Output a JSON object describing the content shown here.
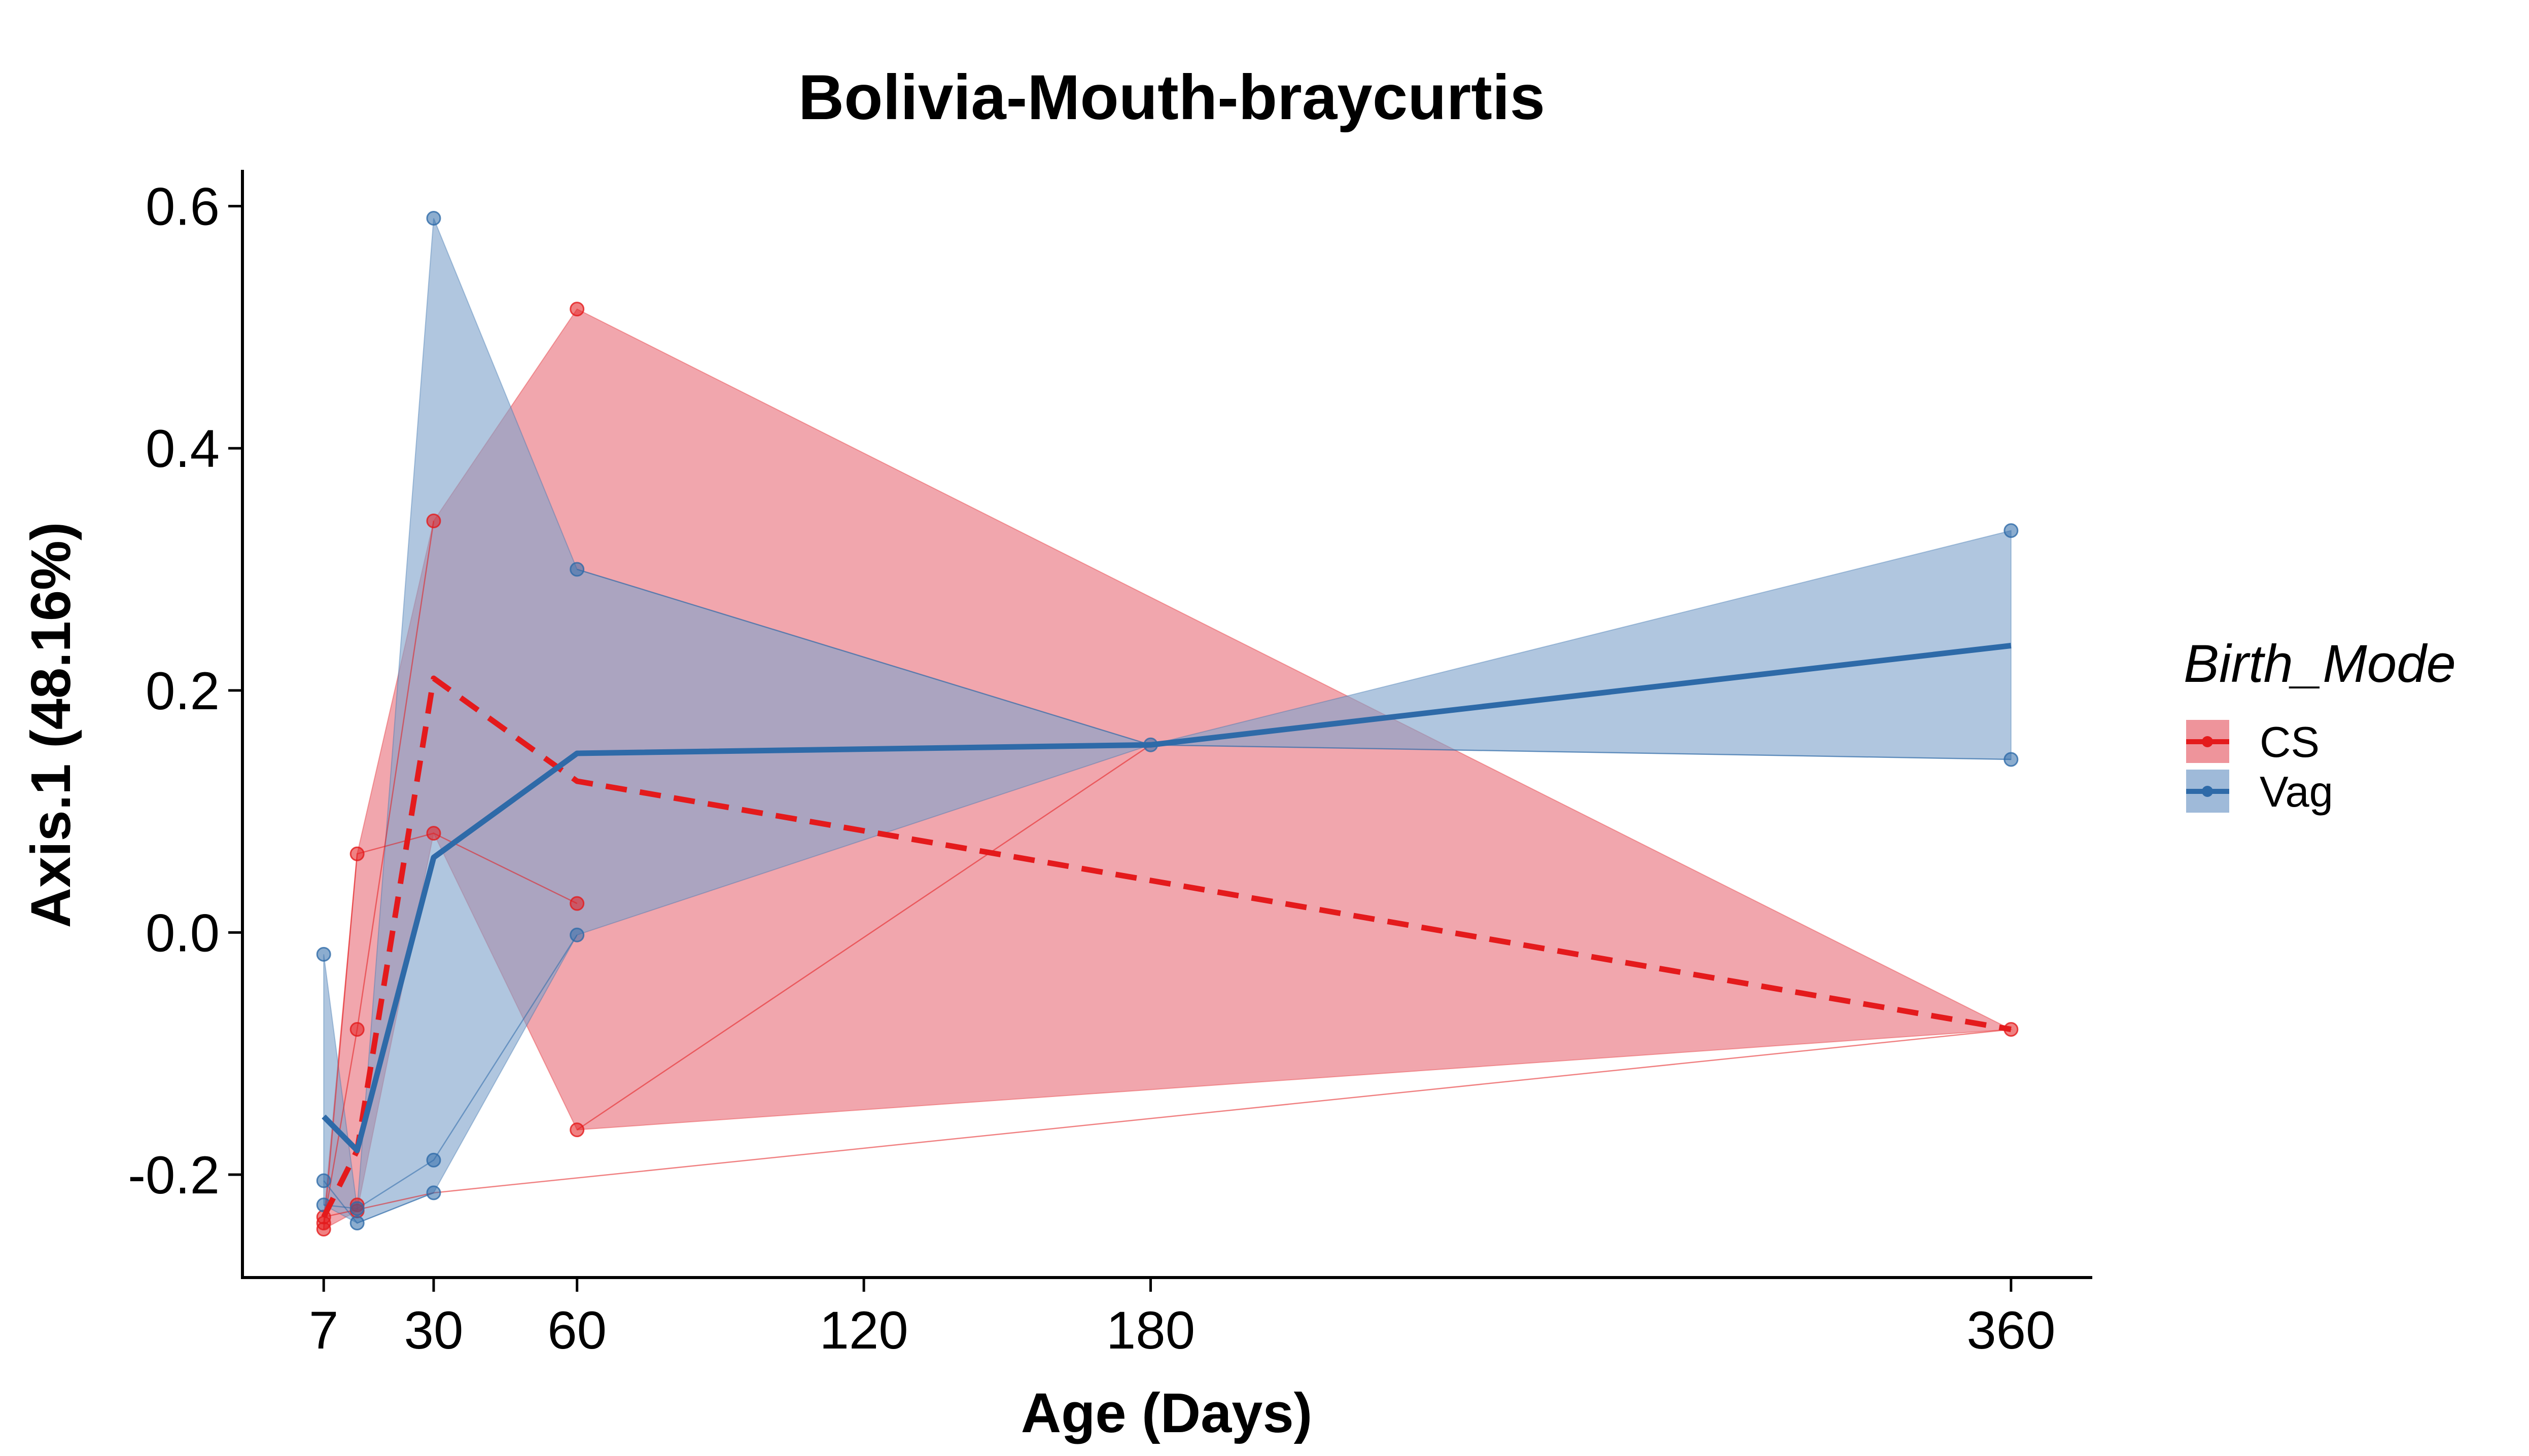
{
  "chart_data": {
    "type": "line",
    "title": "Bolivia-Mouth-braycurtis",
    "xlabel": "Age (Days)",
    "ylabel": "Axis.1 (48.16%)",
    "x_ticks": [
      7,
      30,
      60,
      120,
      180,
      360
    ],
    "x_tick_labels": [
      "7",
      "30",
      "60",
      "120",
      "180",
      "360"
    ],
    "y_ticks": [
      -0.2,
      0.0,
      0.2,
      0.4,
      0.6
    ],
    "y_tick_labels": [
      "-0.2",
      "0.0",
      "0.2",
      "0.4",
      "0.6"
    ],
    "xlim": [
      -10,
      377
    ],
    "ylim": [
      -0.285,
      0.63
    ],
    "grid": false,
    "legend": {
      "title": "Birth_Mode",
      "position": "right",
      "entries": [
        {
          "label": "CS",
          "color": "#E41A1C",
          "linestyle": "dashed"
        },
        {
          "label": "Vag",
          "color": "#2E6AA8",
          "linestyle": "solid"
        }
      ]
    },
    "series": [
      {
        "name": "CS",
        "color": "#E41A1C",
        "fill": "#E8707A",
        "linestyle": "dashed",
        "mean_line": {
          "x": [
            7,
            14,
            30,
            60,
            360
          ],
          "y": [
            -0.235,
            -0.18,
            0.21,
            0.125,
            -0.08
          ]
        },
        "points": [
          {
            "x": 7,
            "y": -0.24
          },
          {
            "x": 7,
            "y": -0.245
          },
          {
            "x": 7,
            "y": -0.235
          },
          {
            "x": 14,
            "y": 0.065
          },
          {
            "x": 14,
            "y": -0.08
          },
          {
            "x": 14,
            "y": -0.225
          },
          {
            "x": 14,
            "y": -0.23
          },
          {
            "x": 30,
            "y": 0.34
          },
          {
            "x": 30,
            "y": 0.082
          },
          {
            "x": 60,
            "y": 0.515
          },
          {
            "x": 60,
            "y": 0.024
          },
          {
            "x": 60,
            "y": -0.163
          },
          {
            "x": 360,
            "y": -0.08
          }
        ],
        "band": {
          "x": [
            7,
            14,
            30,
            60,
            360
          ],
          "upper": [
            -0.235,
            0.065,
            0.34,
            0.515,
            -0.08
          ],
          "lower": [
            -0.245,
            -0.23,
            0.082,
            -0.163,
            -0.08
          ]
        },
        "subject_paths": [
          [
            [
              7,
              -0.24
            ],
            [
              14,
              -0.08
            ],
            [
              30,
              0.34
            ]
          ],
          [
            [
              7,
              -0.245
            ],
            [
              14,
              0.065
            ],
            [
              30,
              0.082
            ],
            [
              60,
              0.024
            ]
          ],
          [
            [
              7,
              -0.235
            ],
            [
              30,
              -0.215
            ],
            [
              360,
              -0.08
            ]
          ],
          [
            [
              60,
              -0.163
            ],
            [
              180,
              0.155
            ]
          ]
        ]
      },
      {
        "name": "Vag",
        "color": "#2E6AA8",
        "fill": "#7FA3CC",
        "linestyle": "solid",
        "mean_line": {
          "x": [
            7,
            14,
            30,
            60,
            180,
            360
          ],
          "y": [
            -0.152,
            -0.18,
            0.062,
            0.148,
            0.155,
            0.237
          ]
        },
        "points": [
          {
            "x": 7,
            "y": -0.018
          },
          {
            "x": 7,
            "y": -0.205
          },
          {
            "x": 7,
            "y": -0.225
          },
          {
            "x": 14,
            "y": -0.228
          },
          {
            "x": 14,
            "y": -0.24
          },
          {
            "x": 30,
            "y": 0.59
          },
          {
            "x": 30,
            "y": -0.188
          },
          {
            "x": 30,
            "y": -0.215
          },
          {
            "x": 60,
            "y": 0.3
          },
          {
            "x": 60,
            "y": -0.002
          },
          {
            "x": 180,
            "y": 0.155
          },
          {
            "x": 360,
            "y": 0.332
          },
          {
            "x": 360,
            "y": 0.143
          }
        ],
        "band": {
          "x": [
            7,
            14,
            30,
            60,
            180,
            360
          ],
          "upper": [
            -0.018,
            -0.228,
            0.59,
            0.3,
            0.155,
            0.332
          ],
          "lower": [
            -0.225,
            -0.24,
            -0.215,
            -0.002,
            0.155,
            0.143
          ]
        },
        "subject_paths": [
          [
            [
              7,
              -0.205
            ],
            [
              14,
              -0.24
            ],
            [
              30,
              -0.215
            ]
          ],
          [
            [
              7,
              -0.225
            ],
            [
              14,
              -0.228
            ],
            [
              30,
              -0.188
            ],
            [
              60,
              -0.002
            ]
          ],
          [
            [
              60,
              0.3
            ],
            [
              180,
              0.155
            ],
            [
              360,
              0.143
            ]
          ]
        ]
      }
    ]
  }
}
